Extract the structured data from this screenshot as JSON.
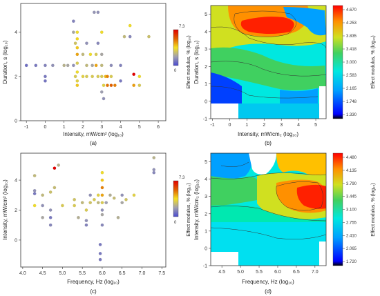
{
  "chart_data": [
    {
      "panel": "(a)",
      "type": "scatter",
      "xlabel": "Intensity, mW/cm² (log₁₀)",
      "ylabel": "Duration, s (log₁₀)",
      "xlim": [
        -1.3,
        6.4
      ],
      "ylim": [
        0,
        5.3
      ],
      "xticks": [
        -1,
        0,
        1,
        2,
        3,
        4,
        5,
        6
      ],
      "yticks": [
        0,
        2,
        4
      ],
      "colorbar": {
        "label": "Effect modulus, % (log₁₀)",
        "max_label": "7.3",
        "min_label": "0",
        "range": [
          0,
          7.3
        ],
        "colors": [
          "#4a4ad0",
          "#a0a0b0",
          "#f5e020",
          "#e06000",
          "#e00000"
        ]
      },
      "points": [
        [
          -1,
          2.5,
          0.8
        ],
        [
          -0.5,
          2.5,
          1.0
        ],
        [
          0,
          2.5,
          1.2
        ],
        [
          0,
          2.0,
          1.0
        ],
        [
          0,
          1.8,
          0.9
        ],
        [
          0.4,
          2.5,
          1.5
        ],
        [
          1,
          2.5,
          2.3
        ],
        [
          1.2,
          2.5,
          2.0
        ],
        [
          1.5,
          2.5,
          1.5
        ],
        [
          1.5,
          4.5,
          1.2
        ],
        [
          1.5,
          4.0,
          2.0
        ],
        [
          1.6,
          3.5,
          2.8
        ],
        [
          1.7,
          4.0,
          3.5
        ],
        [
          1.7,
          3.7,
          3.8
        ],
        [
          1.7,
          3.3,
          4.0
        ],
        [
          1.7,
          3.0,
          4.5
        ],
        [
          1.7,
          2.6,
          3.0
        ],
        [
          1.7,
          2.2,
          3.5
        ],
        [
          1.6,
          2.0,
          3.0
        ],
        [
          1.7,
          1.8,
          3.2
        ],
        [
          1.7,
          1.6,
          4.0
        ],
        [
          2.0,
          3.0,
          2.5
        ],
        [
          2.0,
          2.0,
          3.2
        ],
        [
          2.2,
          3.5,
          1.5
        ],
        [
          2.2,
          2.5,
          2.5
        ],
        [
          2.2,
          2.0,
          3.0
        ],
        [
          2.4,
          3.0,
          3.5
        ],
        [
          2.5,
          2.5,
          2.0
        ],
        [
          2.5,
          2.0,
          3.0
        ],
        [
          2.6,
          4.9,
          1.6
        ],
        [
          2.8,
          4.9,
          1.5
        ],
        [
          2.7,
          3.0,
          3.0
        ],
        [
          2.7,
          2.5,
          4.5
        ],
        [
          2.8,
          3.5,
          1.3
        ],
        [
          2.8,
          2.0,
          3.0
        ],
        [
          3.0,
          4.0,
          3.5
        ],
        [
          3.0,
          3.0,
          2.0
        ],
        [
          3.0,
          2.5,
          2.5
        ],
        [
          3.0,
          2.0,
          3.0
        ],
        [
          3.1,
          1.6,
          3.2
        ],
        [
          3.1,
          1.0,
          1.5
        ],
        [
          3.2,
          2.0,
          4.2
        ],
        [
          3.3,
          2.0,
          5.0
        ],
        [
          3.3,
          1.6,
          5.2
        ],
        [
          3.5,
          1.6,
          5.5
        ],
        [
          3.7,
          1.6,
          5.0
        ],
        [
          3.5,
          2.0,
          3.0
        ],
        [
          3.5,
          2.5,
          1.4
        ],
        [
          3.0,
          1.3,
          1.8
        ],
        [
          4.0,
          2.5,
          1.2
        ],
        [
          4.0,
          1.8,
          1.0
        ],
        [
          4.5,
          3.8,
          1.3
        ],
        [
          4.5,
          4.3,
          3.5
        ],
        [
          4.7,
          2.1,
          7.3
        ],
        [
          4.7,
          1.6,
          4.6
        ],
        [
          5.0,
          1.6,
          3.0
        ],
        [
          5.0,
          2.0,
          3.5
        ],
        [
          5.5,
          3.8,
          2.7
        ],
        [
          4.2,
          3.8,
          2.5
        ]
      ]
    },
    {
      "panel": "(b)",
      "type": "heatmap",
      "xlabel": "Intensity, mW/cm₂ (log₁₀)",
      "ylabel": "Duration, s (log₁₀)",
      "xlim": [
        -1.1,
        5.6
      ],
      "ylim": [
        -1,
        5.5
      ],
      "xticks": [
        -1,
        0,
        1,
        2,
        3,
        4,
        5
      ],
      "yticks": [
        -1,
        0,
        1,
        2,
        3,
        4,
        5
      ],
      "colorbar": {
        "label": "Effect modulus, % (log₁₀)",
        "ticks": [
          "4.670",
          "4.253",
          "3.835",
          "3.418",
          "3.000",
          "2.583",
          "2.165",
          "1.748",
          "1.330"
        ],
        "range": [
          1.33,
          4.67
        ]
      },
      "hotspot": {
        "x": 2.4,
        "y": 4.1,
        "value": 4.6
      }
    },
    {
      "panel": "(c)",
      "type": "scatter",
      "xlabel": "Frequency, Hz (log₁₀)",
      "ylabel": "Intensity, mW/cm² (log₁₀)",
      "xlim": [
        3.95,
        7.6
      ],
      "ylim": [
        -1.8,
        5.8
      ],
      "xticks": [
        "4.0",
        "4.5",
        "5.0",
        "5.5",
        "6.0",
        "6.5",
        "7.0",
        "7.5"
      ],
      "yticks": [
        0,
        2,
        4
      ],
      "colorbar": {
        "label": "Effect modulus, % (log₁₀)",
        "max_label": "7.3",
        "min_label": "0",
        "range": [
          0,
          7.3
        ],
        "colors": [
          "#4a4ad0",
          "#a0a0b0",
          "#f5e020",
          "#e06000",
          "#e00000"
        ]
      },
      "points": [
        [
          4.3,
          4.3,
          2.5
        ],
        [
          4.3,
          3.3,
          1.5
        ],
        [
          4.3,
          3.1,
          1.0
        ],
        [
          4.3,
          2.3,
          3.5
        ],
        [
          4.5,
          3.0,
          2.5
        ],
        [
          4.5,
          2.3,
          1.5
        ],
        [
          4.5,
          1.5,
          2.0
        ],
        [
          4.7,
          3.2,
          2.7
        ],
        [
          4.7,
          2.0,
          1.5
        ],
        [
          4.7,
          1.5,
          1.0
        ],
        [
          4.7,
          1.0,
          1.3
        ],
        [
          4.8,
          4.8,
          7.3
        ],
        [
          4.8,
          3.5,
          2.6
        ],
        [
          4.9,
          5.0,
          2.3
        ],
        [
          5.0,
          2.3,
          3.0
        ],
        [
          5.3,
          2.7,
          2.8
        ],
        [
          5.3,
          2.3,
          3.0
        ],
        [
          5.4,
          1.5,
          2.2
        ],
        [
          5.5,
          2.5,
          2.5
        ],
        [
          5.6,
          1.3,
          1.5
        ],
        [
          5.6,
          1.0,
          1.2
        ],
        [
          5.6,
          2.0,
          3.0
        ],
        [
          5.7,
          2.5,
          2.8
        ],
        [
          5.7,
          3.0,
          1.5
        ],
        [
          5.8,
          2.7,
          3.0
        ],
        [
          5.9,
          3.0,
          3.2
        ],
        [
          5.9,
          2.5,
          2.5
        ],
        [
          6.0,
          4.5,
          3.5
        ],
        [
          6.0,
          4.0,
          4.0
        ],
        [
          6.0,
          3.5,
          5.0
        ],
        [
          6.0,
          3.0,
          4.5
        ],
        [
          6.0,
          2.5,
          3.0
        ],
        [
          6.0,
          2.0,
          1.5
        ],
        [
          6.0,
          1.7,
          2.0
        ],
        [
          6.0,
          1.0,
          1.3
        ],
        [
          5.95,
          -0.3,
          1.0
        ],
        [
          5.95,
          -0.9,
          1.0
        ],
        [
          5.95,
          -1.3,
          1.0
        ],
        [
          6.1,
          2.5,
          1.8
        ],
        [
          6.2,
          3.0,
          2.2
        ],
        [
          6.3,
          2.8,
          2.6
        ],
        [
          6.4,
          1.5,
          2.2
        ],
        [
          6.5,
          3.0,
          1.5
        ],
        [
          6.5,
          2.5,
          2.0
        ],
        [
          6.6,
          2.7,
          2.8
        ],
        [
          6.8,
          3.0,
          3.2
        ],
        [
          7.3,
          5.5,
          2.3
        ],
        [
          7.3,
          4.7,
          1.5
        ],
        [
          7.3,
          4.5,
          1.3
        ]
      ]
    },
    {
      "panel": "(d)",
      "type": "heatmap",
      "xlabel": "Frequency, Hz (log₁₀)",
      "ylabel": "Intensity, mW/cm₂ (log₁₀)",
      "xlim": [
        4.2,
        7.3
      ],
      "ylim": [
        -1,
        5.5
      ],
      "xticks": [
        "4.5",
        "5.0",
        "5.5",
        "6.0",
        "6.5",
        "7.0"
      ],
      "yticks": [
        -1,
        0,
        1,
        2,
        3,
        4,
        5
      ],
      "colorbar": {
        "label": "Effect modulus, % (log₁₀)",
        "ticks": [
          "4.480",
          "4.135",
          "3.790",
          "3.445",
          "3.100",
          "2.755",
          "2.410",
          "2.065",
          "1.720"
        ],
        "range": [
          1.72,
          4.48
        ]
      },
      "hotspot": {
        "x": 7.0,
        "y": 2.7,
        "value": 4.4
      }
    }
  ]
}
